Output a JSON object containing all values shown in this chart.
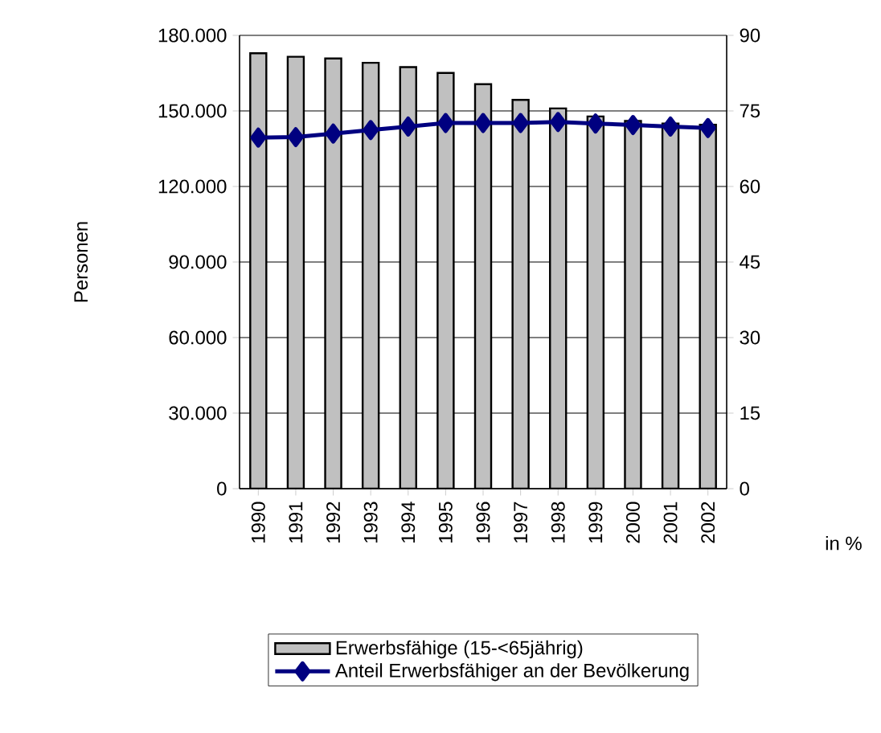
{
  "chart_data": {
    "type": "bar",
    "ylabel": "Personen",
    "y2label": "in %",
    "categories": [
      "1990",
      "1991",
      "1992",
      "1993",
      "1994",
      "1995",
      "1996",
      "1997",
      "1998",
      "1999",
      "2000",
      "2001",
      "2002"
    ],
    "series": [
      {
        "name": "Erwerbsfähige (15-<65jährig)",
        "color": "#c0c0c0",
        "values": [
          172900,
          171500,
          170800,
          169100,
          167400,
          165100,
          160600,
          154400,
          151000,
          147800,
          146000,
          145000,
          144500
        ]
      },
      {
        "name": "Anteil Erwerbsfähiger an der Bevölkerung",
        "type": "line",
        "axis": "y2",
        "color": "#000080",
        "marker": "diamond",
        "values": [
          69.7,
          69.8,
          70.5,
          71.2,
          71.9,
          72.6,
          72.6,
          72.6,
          72.8,
          72.5,
          72.2,
          71.9,
          71.6
        ]
      }
    ],
    "ylim": [
      0,
      180000
    ],
    "yticks": [
      {
        "value": 0,
        "label": "0"
      },
      {
        "value": 30000,
        "label": "30.000"
      },
      {
        "value": 60000,
        "label": "60.000"
      },
      {
        "value": 90000,
        "label": "90.000"
      },
      {
        "value": 120000,
        "label": "120.000"
      },
      {
        "value": 150000,
        "label": "150.000"
      },
      {
        "value": 180000,
        "label": "180.000"
      }
    ],
    "y2lim": [
      0,
      90
    ],
    "y2ticks": [
      0,
      15,
      30,
      45,
      60,
      75,
      90
    ],
    "grid": "y",
    "legend": "bottom"
  }
}
